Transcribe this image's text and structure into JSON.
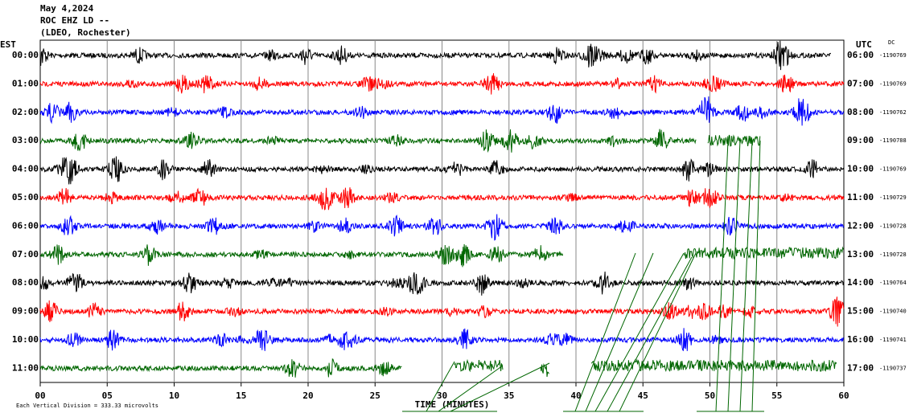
{
  "header": {
    "date": "May 4,2024",
    "station": "ROC EHZ LD --",
    "location": "(LDEO, Rochester)"
  },
  "left_axis": {
    "title": "EST",
    "labels": [
      "00:00",
      "01:00",
      "02:00",
      "03:00",
      "04:00",
      "05:00",
      "06:00",
      "07:00",
      "08:00",
      "09:00",
      "10:00",
      "11:00"
    ]
  },
  "right_axis": {
    "title": "UTC",
    "dc_title": "DC",
    "labels": [
      "06:00",
      "07:00",
      "08:00",
      "09:00",
      "10:00",
      "11:00",
      "12:00",
      "13:00",
      "14:00",
      "15:00",
      "16:00",
      "17:00"
    ],
    "dc_values": [
      "-1190769",
      "-1190769",
      "-1190762",
      "-1190788",
      "-1190769",
      "-1190729",
      "-1190728",
      "-1190728",
      "-1190764",
      "-1190740",
      "-1190741",
      "-1190737"
    ]
  },
  "x_axis": {
    "title": "TIME (MINUTES)",
    "ticks": [
      "00",
      "05",
      "10",
      "15",
      "20",
      "25",
      "30",
      "35",
      "40",
      "45",
      "50",
      "55",
      "60"
    ]
  },
  "footer": "Each Vertical Division =  333.33 microvolts"
}
